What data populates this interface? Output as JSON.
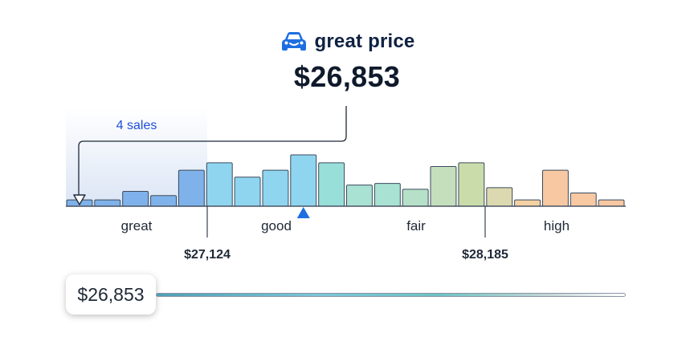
{
  "header": {
    "icon": "car-icon",
    "rating_label": "great price",
    "price": "$26,853"
  },
  "histogram": {
    "sales_label": "4 sales",
    "bins": [
      "great",
      "good",
      "fair",
      "high"
    ],
    "boundaries": [
      "$27,124",
      "$28,185"
    ],
    "bar_heights": [
      0.12,
      0.12,
      0.28,
      0.2,
      0.68,
      0.82,
      0.55,
      0.68,
      0.97,
      0.82,
      0.4,
      0.43,
      0.32,
      0.75,
      0.82,
      0.35,
      0.12,
      0.68,
      0.25,
      0.12
    ],
    "bar_colors": [
      "#7fb2ea",
      "#7fb2ea",
      "#7fb2ea",
      "#7fb2ea",
      "#7fb2ea",
      "#8fd5ef",
      "#8fd5ef",
      "#8fd5ef",
      "#8fd5ef",
      "#99dfd9",
      "#a9e1d3",
      "#a9e1d3",
      "#b6e0c7",
      "#c5dfbd",
      "#cbdcab",
      "#dcd9b0",
      "#f3d1a3",
      "#f7c8a2",
      "#f7c8a2",
      "#f7c8a2"
    ],
    "marker_bar_index": 0,
    "indicator_bar_index": 8,
    "accent": "#1d6fe0"
  },
  "price_input": {
    "value": "$26,853"
  }
}
